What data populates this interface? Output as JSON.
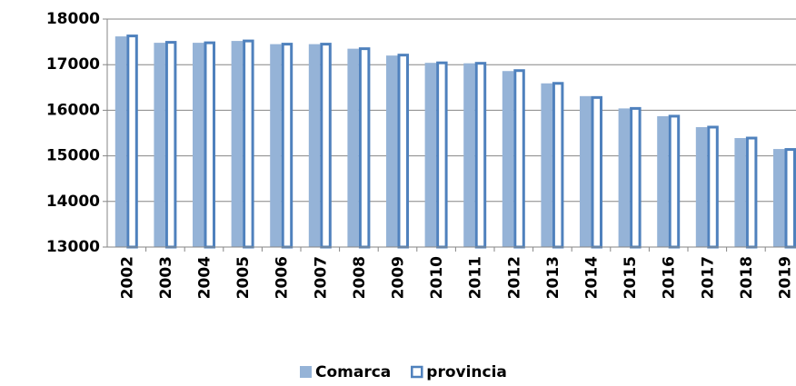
{
  "chart_data": {
    "type": "bar",
    "categories": [
      "2002",
      "2003",
      "2004",
      "2005",
      "2006",
      "2007",
      "2008",
      "2009",
      "2010",
      "2011",
      "2012",
      "2013",
      "2014",
      "2015",
      "2016",
      "2017",
      "2018",
      "2019"
    ],
    "series": [
      {
        "name": "Comarca",
        "color": "#95b3d7",
        "style": "filled",
        "values": [
          17620,
          17480,
          17480,
          17520,
          17450,
          17450,
          17350,
          17200,
          17040,
          17030,
          16860,
          16590,
          16310,
          16040,
          15870,
          15630,
          15390,
          15150
        ]
      },
      {
        "name": "provincia",
        "color": "#4f81bd",
        "style": "outline",
        "values": [
          17660,
          17520,
          17510,
          17550,
          17480,
          17480,
          17380,
          17240,
          17070,
          17060,
          16900,
          16620,
          16310,
          16070,
          15900,
          15660,
          15420,
          15170
        ]
      }
    ],
    "ylim": [
      13000,
      18000
    ],
    "yticks": [
      13000,
      14000,
      15000,
      16000,
      17000,
      18000
    ],
    "grid": true,
    "legend": "bottom"
  }
}
